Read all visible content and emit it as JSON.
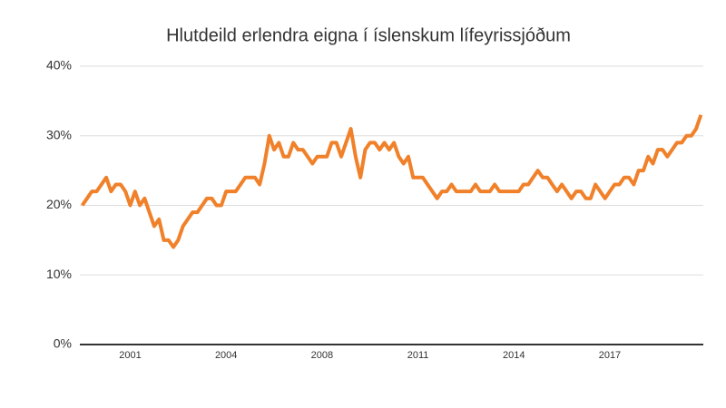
{
  "chart_data": {
    "type": "line",
    "title": "Hlutdeild erlendra eigna í íslenskum lífeyrissjóðum",
    "categories": [
      null,
      null,
      null,
      null,
      null,
      null,
      null,
      null,
      null,
      null,
      "2001",
      null,
      null,
      null,
      null,
      null,
      null,
      null,
      null,
      null,
      null,
      null,
      null,
      null,
      null,
      null,
      null,
      null,
      null,
      null,
      "2004",
      null,
      null,
      null,
      null,
      null,
      null,
      null,
      null,
      null,
      null,
      null,
      null,
      null,
      null,
      null,
      null,
      null,
      null,
      null,
      "2008",
      null,
      null,
      null,
      null,
      null,
      null,
      null,
      null,
      null,
      null,
      null,
      null,
      null,
      null,
      null,
      null,
      null,
      null,
      null,
      "2011",
      null,
      null,
      null,
      null,
      null,
      null,
      null,
      null,
      null,
      null,
      null,
      null,
      null,
      null,
      null,
      null,
      null,
      null,
      null,
      "2014",
      null,
      null,
      null,
      null,
      null,
      null,
      null,
      null,
      null,
      null,
      null,
      null,
      null,
      null,
      null,
      null,
      null,
      null,
      null,
      "2017",
      null,
      null,
      null,
      null,
      null,
      null,
      null,
      null,
      null,
      null,
      null,
      null,
      null,
      null,
      null,
      null,
      null,
      null,
      null
    ],
    "series": [
      {
        "color": "#f0812a",
        "values": [
          20,
          21,
          22,
          22,
          23,
          24,
          22,
          23,
          23,
          22,
          20,
          22,
          20,
          21,
          19,
          17,
          18,
          15,
          15,
          14,
          15,
          17,
          18,
          19,
          19,
          20,
          21,
          21,
          20,
          20,
          22,
          22,
          22,
          23,
          24,
          24,
          24,
          23,
          26,
          30,
          28,
          29,
          27,
          27,
          29,
          28,
          28,
          27,
          26,
          27,
          27,
          27,
          29,
          29,
          27,
          29,
          31,
          27,
          24,
          28,
          29,
          29,
          28,
          29,
          28,
          29,
          27,
          26,
          27,
          24,
          24,
          24,
          23,
          22,
          21,
          22,
          22,
          23,
          22,
          22,
          22,
          22,
          23,
          22,
          22,
          22,
          23,
          22,
          22,
          22,
          22,
          22,
          23,
          23,
          24,
          25,
          24,
          24,
          23,
          22,
          23,
          22,
          21,
          22,
          22,
          21,
          21,
          23,
          22,
          21,
          22,
          23,
          23,
          24,
          24,
          23,
          25,
          25,
          27,
          26,
          28,
          28,
          27,
          28,
          29,
          29,
          30,
          30,
          31,
          33
        ]
      }
    ],
    "ylim": [
      0,
      40
    ],
    "yticks": [
      {
        "value": 0,
        "label": "0%"
      },
      {
        "value": 10,
        "label": "10%"
      },
      {
        "value": 20,
        "label": "20%"
      },
      {
        "value": 30,
        "label": "30%"
      },
      {
        "value": 40,
        "label": "40%"
      }
    ],
    "grid": true
  }
}
